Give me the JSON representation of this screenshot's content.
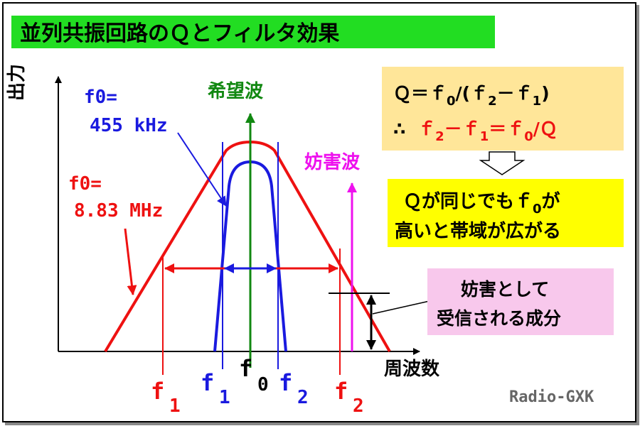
{
  "title": "並列共振回路のＱとフィルタ効果",
  "axes": {
    "y_label": "出力",
    "x_label": "周波数"
  },
  "labels": {
    "desired": "希望波",
    "interference": "妨害波",
    "blue_f0_line1": "f0=",
    "blue_f0_line2": "455 kHz",
    "red_f0_line1": "f0=",
    "red_f0_line2": "8.83 MHz",
    "f_main": "f",
    "f_main_sub": "0",
    "red_f1": "f",
    "red_f1_sub": "1",
    "blue_f1": "f",
    "blue_f1_sub": "1",
    "blue_f2": "f",
    "blue_f2_sub": "2",
    "red_f2": "f",
    "red_f2_sub": "2"
  },
  "formula": {
    "line1": "Ｑ＝ｆ0/(ｆ 2－ｆ1)",
    "line2_prefix": "∴",
    "line2": "ｆ2－ｆ1＝ｆ0/Ｑ"
  },
  "conclusion": {
    "line1": "Ｑが同じでもｆ0が",
    "line2": "高いと帯域が広がる"
  },
  "note": {
    "line1": "妨害として",
    "line2": "受信される成分"
  },
  "credit": "Radio-GXK",
  "colors": {
    "red": "#ee1111",
    "blue": "#1a1adf",
    "green": "#118811",
    "magenta": "#ee11ee",
    "title_bg": "#22dd22",
    "formula_bg": "#ffe699",
    "conclusion_bg": "#ffff00",
    "note_bg": "#f8c8ec"
  }
}
